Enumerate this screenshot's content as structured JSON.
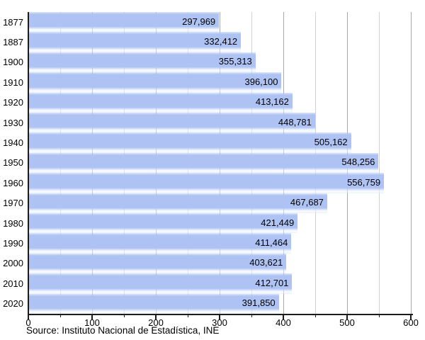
{
  "chart_data": {
    "type": "bar",
    "orientation": "horizontal",
    "title": "",
    "xlabel": "",
    "ylabel": "",
    "categories": [
      "1877",
      "1887",
      "1900",
      "1910",
      "1920",
      "1930",
      "1940",
      "1950",
      "1960",
      "1970",
      "1980",
      "1990",
      "2000",
      "2010",
      "2020"
    ],
    "values": [
      297969,
      332412,
      355313,
      396100,
      413162,
      448781,
      505162,
      548256,
      556759,
      467687,
      421449,
      411464,
      403621,
      412701,
      391850
    ],
    "value_labels": [
      "297,969",
      "332,412",
      "355,313",
      "396,100",
      "413,162",
      "448,781",
      "505,162",
      "548,256",
      "556,759",
      "467,687",
      "421,449",
      "411,464",
      "403,621",
      "412,701",
      "391,850"
    ],
    "xlim": [
      0,
      600000
    ],
    "x_tick_labels": [
      "0",
      "100",
      "200",
      "300",
      "400",
      "500",
      "600"
    ],
    "x_tick_step_units": 100000,
    "x_minor_tick_step_units": 50000,
    "grid": "vertical",
    "legend": "none",
    "source": "Source: Instituto Nacional de Estadística, INE",
    "colors": {
      "bar": "#aec3f3",
      "bar_highlight": "#f5f9ff",
      "gridline_major": "#a8a8a8",
      "gridline_minor": "#d2d2d2",
      "axis": "#1c1c1c",
      "text": "#000000",
      "background": "#ffffff"
    }
  }
}
